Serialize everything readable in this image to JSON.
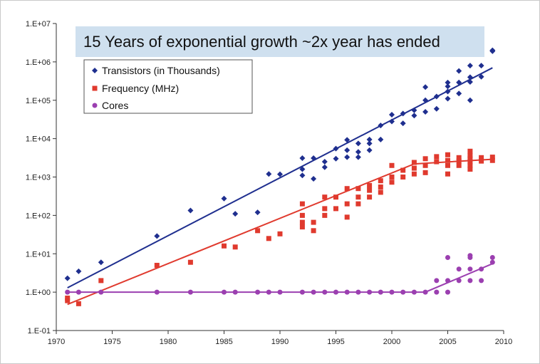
{
  "chart_data": {
    "type": "scatter",
    "title": "15 Years of exponential growth ~2x year has ended",
    "xlabel": "",
    "ylabel": "",
    "y_scale": "log",
    "xlim": [
      1970,
      2010
    ],
    "ylim": [
      0.1,
      10000000
    ],
    "x_ticks": [
      "1970",
      "1975",
      "1980",
      "1985",
      "1990",
      "1995",
      "2000",
      "2005",
      "2010"
    ],
    "y_ticks": [
      "1.E-01",
      "1.E+00",
      "1.E+01",
      "1.E+02",
      "1.E+03",
      "1.E+04",
      "1.E+05",
      "1.E+06",
      "1.E+07"
    ],
    "y_tick_values": [
      0.1,
      1,
      10,
      100,
      1000,
      10000,
      100000,
      1000000,
      10000000
    ],
    "x_tick_values": [
      1970,
      1975,
      1980,
      1985,
      1990,
      1995,
      2000,
      2005,
      2010
    ],
    "grid": false,
    "legend_position": "top-left",
    "colors": {
      "transistors": "#1f2f8f",
      "frequency": "#e03a2e",
      "cores": "#9b3fb0",
      "title_bg": "#cfe0ef"
    },
    "series": [
      {
        "name": "Transistors (in Thousands)",
        "marker": "diamond",
        "points": [
          [
            1971,
            2.3
          ],
          [
            1972,
            3.5
          ],
          [
            1974,
            6
          ],
          [
            1979,
            29
          ],
          [
            1982,
            134
          ],
          [
            1985,
            275
          ],
          [
            1986,
            110
          ],
          [
            1988,
            120
          ],
          [
            1989,
            1200
          ],
          [
            1990,
            1180
          ],
          [
            1992,
            3100
          ],
          [
            1992,
            1600
          ],
          [
            1992,
            1100
          ],
          [
            1993,
            3100
          ],
          [
            1993,
            900
          ],
          [
            1994,
            2500
          ],
          [
            1994,
            1800
          ],
          [
            1995,
            5500
          ],
          [
            1995,
            3000
          ],
          [
            1996,
            9300
          ],
          [
            1996,
            5000
          ],
          [
            1996,
            3300
          ],
          [
            1997,
            7500
          ],
          [
            1997,
            4500
          ],
          [
            1997,
            3300
          ],
          [
            1998,
            9500
          ],
          [
            1998,
            7500
          ],
          [
            1998,
            5000
          ],
          [
            1999,
            22000
          ],
          [
            1999,
            9500
          ],
          [
            2000,
            42000
          ],
          [
            2000,
            28000
          ],
          [
            2001,
            45000
          ],
          [
            2001,
            25000
          ],
          [
            2002,
            55000
          ],
          [
            2002,
            40000
          ],
          [
            2003,
            220000
          ],
          [
            2003,
            100000
          ],
          [
            2003,
            50000
          ],
          [
            2004,
            125000
          ],
          [
            2004,
            60000
          ],
          [
            2005,
            290000
          ],
          [
            2005,
            230000
          ],
          [
            2005,
            169000
          ],
          [
            2005,
            110000
          ],
          [
            2006,
            580000
          ],
          [
            2006,
            291000
          ],
          [
            2006,
            150000
          ],
          [
            2007,
            800000
          ],
          [
            2007,
            400000
          ],
          [
            2007,
            300000
          ],
          [
            2007,
            100000
          ],
          [
            2008,
            800000
          ],
          [
            2008,
            410000
          ],
          [
            2009,
            2000000
          ],
          [
            2009,
            1900000
          ]
        ],
        "trend": [
          [
            1971,
            1.3
          ],
          [
            2009,
            700000
          ]
        ]
      },
      {
        "name": "Frequency (MHz)",
        "marker": "square",
        "points": [
          [
            1971,
            0.7
          ],
          [
            1971,
            0.6
          ],
          [
            1972,
            0.5
          ],
          [
            1974,
            2
          ],
          [
            1979,
            5
          ],
          [
            1982,
            6
          ],
          [
            1985,
            16
          ],
          [
            1986,
            15
          ],
          [
            1988,
            40
          ],
          [
            1989,
            25
          ],
          [
            1990,
            33
          ],
          [
            1992,
            200
          ],
          [
            1992,
            100
          ],
          [
            1992,
            66
          ],
          [
            1992,
            50
          ],
          [
            1993,
            66
          ],
          [
            1993,
            40
          ],
          [
            1994,
            300
          ],
          [
            1994,
            150
          ],
          [
            1994,
            100
          ],
          [
            1995,
            300
          ],
          [
            1995,
            150
          ],
          [
            1996,
            500
          ],
          [
            1996,
            200
          ],
          [
            1996,
            90
          ],
          [
            1997,
            500
          ],
          [
            1997,
            300
          ],
          [
            1997,
            200
          ],
          [
            1998,
            600
          ],
          [
            1998,
            450
          ],
          [
            1998,
            300
          ],
          [
            1999,
            800
          ],
          [
            1999,
            550
          ],
          [
            1999,
            400
          ],
          [
            2000,
            2000
          ],
          [
            2000,
            1000
          ],
          [
            2000,
            733
          ],
          [
            2001,
            1500
          ],
          [
            2001,
            1000
          ],
          [
            2002,
            2400
          ],
          [
            2002,
            1700
          ],
          [
            2002,
            1200
          ],
          [
            2003,
            3000
          ],
          [
            2003,
            2000
          ],
          [
            2003,
            1300
          ],
          [
            2004,
            3400
          ],
          [
            2004,
            2500
          ],
          [
            2005,
            3800
          ],
          [
            2005,
            2700
          ],
          [
            2005,
            2000
          ],
          [
            2005,
            1200
          ],
          [
            2006,
            3200
          ],
          [
            2006,
            2600
          ],
          [
            2006,
            2000
          ],
          [
            2007,
            4700
          ],
          [
            2007,
            3600
          ],
          [
            2007,
            3000
          ],
          [
            2007,
            2500
          ],
          [
            2007,
            2000
          ],
          [
            2007,
            1600
          ],
          [
            2008,
            3200
          ],
          [
            2008,
            2600
          ],
          [
            2009,
            3300
          ],
          [
            2009,
            2700
          ]
        ],
        "trend": [
          [
            1971,
            0.48
          ],
          [
            2002,
            2200
          ],
          [
            2009,
            2900
          ]
        ]
      },
      {
        "name": "Cores",
        "marker": "circle",
        "points": [
          [
            1971,
            1
          ],
          [
            1972,
            1
          ],
          [
            1974,
            1
          ],
          [
            1979,
            1
          ],
          [
            1982,
            1
          ],
          [
            1985,
            1
          ],
          [
            1986,
            1
          ],
          [
            1988,
            1
          ],
          [
            1989,
            1
          ],
          [
            1990,
            1
          ],
          [
            1992,
            1
          ],
          [
            1993,
            1
          ],
          [
            1994,
            1
          ],
          [
            1995,
            1
          ],
          [
            1996,
            1
          ],
          [
            1997,
            1
          ],
          [
            1998,
            1
          ],
          [
            1999,
            1
          ],
          [
            2000,
            1
          ],
          [
            2001,
            1
          ],
          [
            2002,
            1
          ],
          [
            2003,
            1
          ],
          [
            2004,
            2
          ],
          [
            2004,
            1
          ],
          [
            2005,
            8
          ],
          [
            2005,
            2
          ],
          [
            2005,
            1
          ],
          [
            2006,
            4
          ],
          [
            2006,
            2
          ],
          [
            2007,
            9
          ],
          [
            2007,
            8
          ],
          [
            2007,
            4
          ],
          [
            2007,
            2
          ],
          [
            2008,
            4
          ],
          [
            2008,
            2
          ],
          [
            2009,
            8
          ],
          [
            2009,
            6
          ]
        ],
        "trend": [
          [
            1971,
            1
          ],
          [
            2003,
            1
          ],
          [
            2009,
            5.5
          ]
        ]
      }
    ]
  }
}
